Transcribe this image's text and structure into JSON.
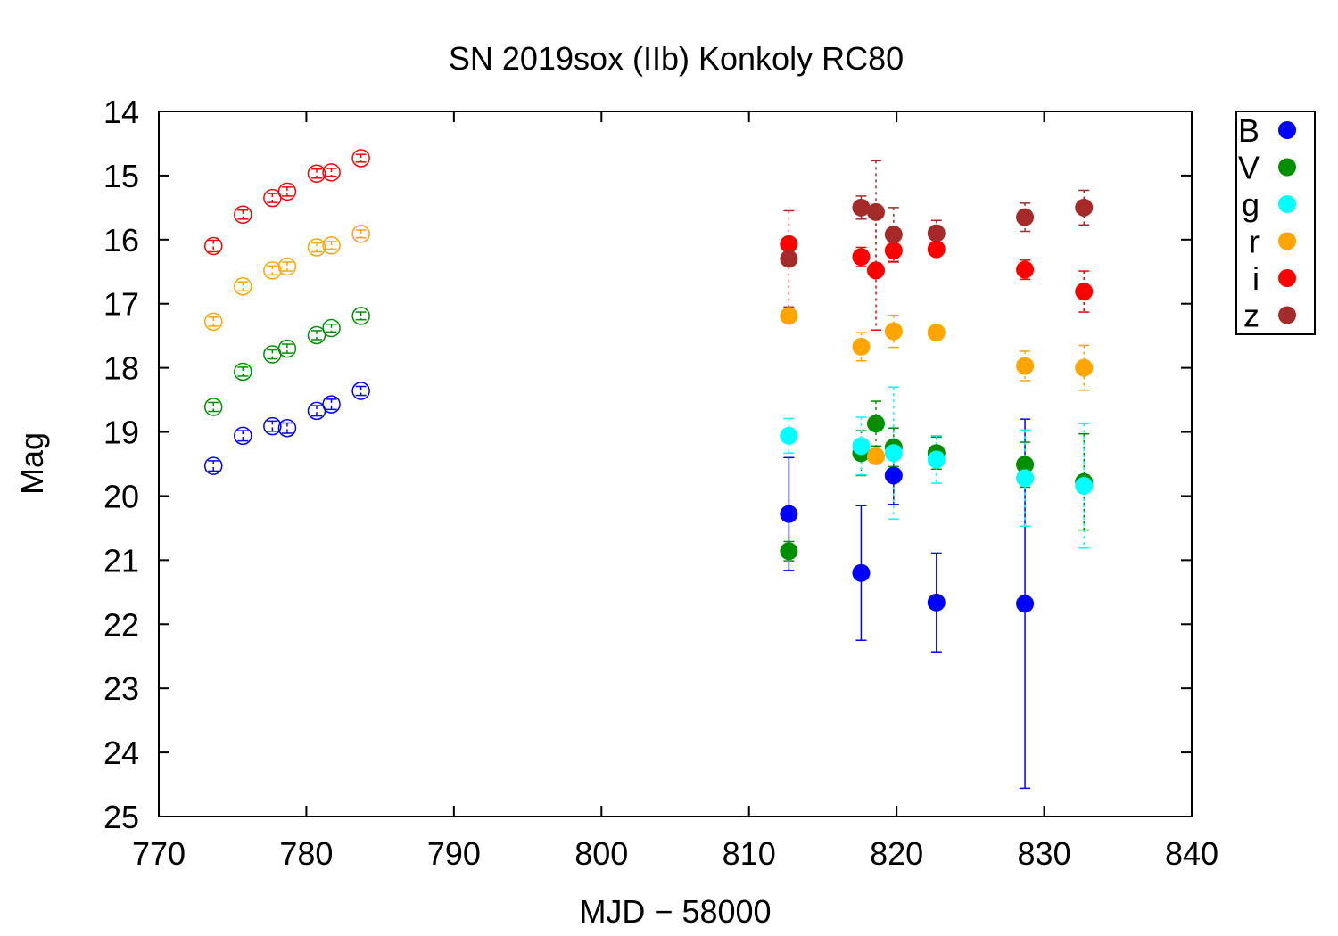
{
  "chart_data": {
    "type": "scatter",
    "title": "SN 2019sox (IIb) Konkoly RC80",
    "xlabel": "MJD − 58000",
    "ylabel": "Mag",
    "xlim": [
      770,
      840
    ],
    "ylim": [
      25,
      14
    ],
    "y_inverted": true,
    "x_ticks": [
      770,
      780,
      790,
      800,
      810,
      820,
      830,
      840
    ],
    "y_ticks": [
      14,
      15,
      16,
      17,
      18,
      19,
      20,
      21,
      22,
      23,
      24,
      25
    ],
    "legend_position": "top-right outside",
    "grid": false,
    "series": [
      {
        "name": "B",
        "color": "#0000ff",
        "points": [
          {
            "x": 812.7,
            "y": 20.28,
            "err": 0.88
          },
          {
            "x": 817.6,
            "y": 21.2,
            "err": 1.05
          },
          {
            "x": 819.8,
            "y": 19.68,
            "err": 0.45
          },
          {
            "x": 822.7,
            "y": 21.66,
            "err": 0.77
          },
          {
            "x": 828.7,
            "y": 21.68,
            "err": 2.88
          }
        ]
      },
      {
        "name": "V",
        "color": "#008f00",
        "points": [
          {
            "x": 812.7,
            "y": 20.86,
            "err": 0.15
          },
          {
            "x": 817.6,
            "y": 19.33,
            "err": 0.35
          },
          {
            "x": 818.6,
            "y": 18.87,
            "err": 0.35
          },
          {
            "x": 819.8,
            "y": 19.24,
            "err": 0.3
          },
          {
            "x": 822.7,
            "y": 19.33,
            "err": 0.25
          },
          {
            "x": 828.7,
            "y": 19.51,
            "err": 0.35
          },
          {
            "x": 832.7,
            "y": 19.78,
            "err": 0.75
          }
        ]
      },
      {
        "name": "g",
        "color": "#00ffff",
        "points": [
          {
            "x": 812.7,
            "y": 19.06,
            "err": 0.27
          },
          {
            "x": 817.6,
            "y": 19.22,
            "err": 0.45
          },
          {
            "x": 819.8,
            "y": 19.33,
            "err": 1.03
          },
          {
            "x": 822.7,
            "y": 19.43,
            "err": 0.37
          },
          {
            "x": 828.7,
            "y": 19.72,
            "err": 0.75
          },
          {
            "x": 832.7,
            "y": 19.84,
            "err": 0.97
          }
        ]
      },
      {
        "name": "r",
        "color": "#ffa500",
        "points": [
          {
            "x": 812.7,
            "y": 17.19,
            "err": 0.08
          },
          {
            "x": 817.6,
            "y": 17.67,
            "err": 0.22
          },
          {
            "x": 818.6,
            "y": 19.38,
            "err": 0.08
          },
          {
            "x": 819.8,
            "y": 17.43,
            "err": 0.25
          },
          {
            "x": 822.7,
            "y": 17.45,
            "err": 0.08
          },
          {
            "x": 828.7,
            "y": 17.97,
            "err": 0.23
          },
          {
            "x": 832.7,
            "y": 18.0,
            "err": 0.35
          }
        ]
      },
      {
        "name": "i",
        "color": "#ff0000",
        "points": [
          {
            "x": 812.7,
            "y": 16.07,
            "err": 0.1
          },
          {
            "x": 817.6,
            "y": 16.27,
            "err": 0.15
          },
          {
            "x": 818.6,
            "y": 16.48,
            "err": 0.93
          },
          {
            "x": 819.8,
            "y": 16.17,
            "err": 0.18
          },
          {
            "x": 822.7,
            "y": 16.15,
            "err": 0.1
          },
          {
            "x": 828.7,
            "y": 16.47,
            "err": 0.15
          },
          {
            "x": 832.7,
            "y": 16.81,
            "err": 0.32
          }
        ]
      },
      {
        "name": "z",
        "color": "#a52a2a",
        "points": [
          {
            "x": 812.7,
            "y": 16.3,
            "err": 0.75
          },
          {
            "x": 817.6,
            "y": 15.5,
            "err": 0.18
          },
          {
            "x": 818.6,
            "y": 15.57,
            "err": 0.8
          },
          {
            "x": 819.8,
            "y": 15.92,
            "err": 0.42
          },
          {
            "x": 822.7,
            "y": 15.9,
            "err": 0.2
          },
          {
            "x": 828.7,
            "y": 15.65,
            "err": 0.22
          },
          {
            "x": 832.7,
            "y": 15.5,
            "err": 0.27
          }
        ]
      },
      {
        "color": "#0000ff",
        "style": "open",
        "offset": 4,
        "points": [
          {
            "x": 773.7,
            "y": 19.53,
            "err": 0.08
          },
          {
            "x": 775.7,
            "y": 19.06,
            "err": 0.08
          },
          {
            "x": 777.7,
            "y": 18.91,
            "err": 0.08
          },
          {
            "x": 778.7,
            "y": 18.94,
            "err": 0.08
          },
          {
            "x": 780.7,
            "y": 18.67,
            "err": 0.08
          },
          {
            "x": 781.7,
            "y": 18.57,
            "err": 0.08
          },
          {
            "x": 783.7,
            "y": 18.36,
            "err": 0.07
          }
        ]
      },
      {
        "color": "#008f00",
        "style": "open",
        "offset": 3,
        "points": [
          {
            "x": 773.7,
            "y": 18.61,
            "err": 0.07
          },
          {
            "x": 775.7,
            "y": 18.06,
            "err": 0.07
          },
          {
            "x": 777.7,
            "y": 17.79,
            "err": 0.07
          },
          {
            "x": 778.7,
            "y": 17.7,
            "err": 0.07
          },
          {
            "x": 780.7,
            "y": 17.49,
            "err": 0.07
          },
          {
            "x": 781.7,
            "y": 17.38,
            "err": 0.06
          },
          {
            "x": 783.7,
            "y": 17.19,
            "err": 0.06
          }
        ]
      },
      {
        "color": "#ffa500",
        "style": "open",
        "offset": 2,
        "points": [
          {
            "x": 773.7,
            "y": 17.28,
            "err": 0.07
          },
          {
            "x": 775.7,
            "y": 16.73,
            "err": 0.07
          },
          {
            "x": 777.7,
            "y": 16.48,
            "err": 0.07
          },
          {
            "x": 778.7,
            "y": 16.42,
            "err": 0.07
          },
          {
            "x": 780.7,
            "y": 16.12,
            "err": 0.07
          },
          {
            "x": 781.7,
            "y": 16.09,
            "err": 0.06
          },
          {
            "x": 783.7,
            "y": 15.91,
            "err": 0.06
          }
        ]
      },
      {
        "color": "#ff0000",
        "style": "open",
        "offset": 1,
        "points": [
          {
            "x": 773.7,
            "y": 16.1,
            "err": 0.09
          },
          {
            "x": 775.7,
            "y": 15.61,
            "err": 0.07
          },
          {
            "x": 777.7,
            "y": 15.35,
            "err": 0.07
          },
          {
            "x": 778.7,
            "y": 15.25,
            "err": 0.07
          },
          {
            "x": 780.7,
            "y": 14.97,
            "err": 0.07
          },
          {
            "x": 781.7,
            "y": 14.95,
            "err": 0.06
          },
          {
            "x": 783.7,
            "y": 14.73,
            "err": 0.06
          }
        ]
      }
    ]
  }
}
